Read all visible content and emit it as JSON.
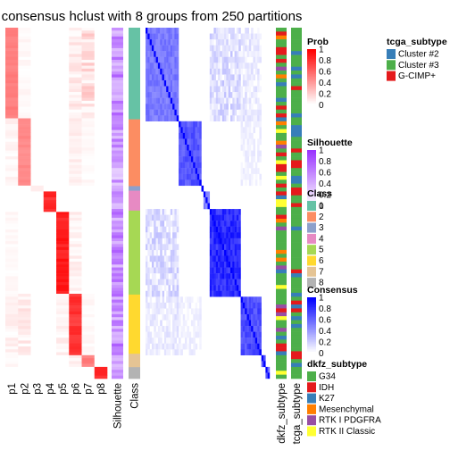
{
  "chart_data": {
    "type": "heatmap",
    "title": "consensus hclust with 8 groups from 250 partitions",
    "membership_columns": [
      "p1",
      "p2",
      "p3",
      "p4",
      "p5",
      "p6",
      "p7",
      "p8"
    ],
    "annotation_columns": [
      "Silhouette",
      "Class"
    ],
    "side_annotation_columns": [
      "dkfz_subtype",
      "tcga_subtype"
    ],
    "classes": [
      {
        "label": "1",
        "color": "#66C2A5",
        "fraction": 0.24
      },
      {
        "label": "2",
        "color": "#FC8D62",
        "fraction": 0.175
      },
      {
        "label": "3",
        "color": "#8DA0CB",
        "fraction": 0.012
      },
      {
        "label": "4",
        "color": "#E78AC3",
        "fraction": 0.052
      },
      {
        "label": "5",
        "color": "#A6D854",
        "fraction": 0.22
      },
      {
        "label": "6",
        "color": "#FFD92F",
        "fraction": 0.155
      },
      {
        "label": "7",
        "color": "#E5C494",
        "fraction": 0.035
      },
      {
        "label": "8",
        "color": "#B3B3B3",
        "fraction": 0.03
      }
    ],
    "legends": {
      "prob": {
        "title": "Prob",
        "ticks": [
          "1",
          "0.8",
          "0.6",
          "0.4",
          "0.2",
          "0"
        ],
        "color_low": "#FFFFFF",
        "color_high": "#FF0000"
      },
      "silhouette": {
        "title": "Silhouette",
        "ticks": [
          "1",
          "0.8",
          "0.6",
          "0.4",
          "0.2",
          "0"
        ],
        "color_low": "#FFFFFF",
        "color_high": "#9933FF"
      },
      "class": {
        "title": "Class",
        "items": [
          "1",
          "2",
          "3",
          "4",
          "5",
          "6",
          "7",
          "8"
        ]
      },
      "consensus": {
        "title": "Consensus",
        "ticks": [
          "1",
          "0.8",
          "0.6",
          "0.4",
          "0.2",
          "0"
        ],
        "color_low": "#FFFFFF",
        "color_high": "#0000FF"
      },
      "tcga_subtype": {
        "title": "tcga_subtype",
        "items": [
          {
            "label": "Cluster #2",
            "color": "#377EB8"
          },
          {
            "label": "Cluster #3",
            "color": "#4DAF4A"
          },
          {
            "label": "G-CIMP+",
            "color": "#E41A1C"
          }
        ]
      },
      "dkfz_subtype": {
        "title": "dkfz_subtype",
        "items": [
          {
            "label": "G34",
            "color": "#4DAF4A"
          },
          {
            "label": "IDH",
            "color": "#E41A1C"
          },
          {
            "label": "K27",
            "color": "#377EB8"
          },
          {
            "label": "Mesenchymal",
            "color": "#FF7F00"
          },
          {
            "label": "RTK I PDGFRA",
            "color": "#984EA3"
          },
          {
            "label": "RTK II Classic",
            "color": "#FFFF33"
          }
        ]
      }
    }
  }
}
